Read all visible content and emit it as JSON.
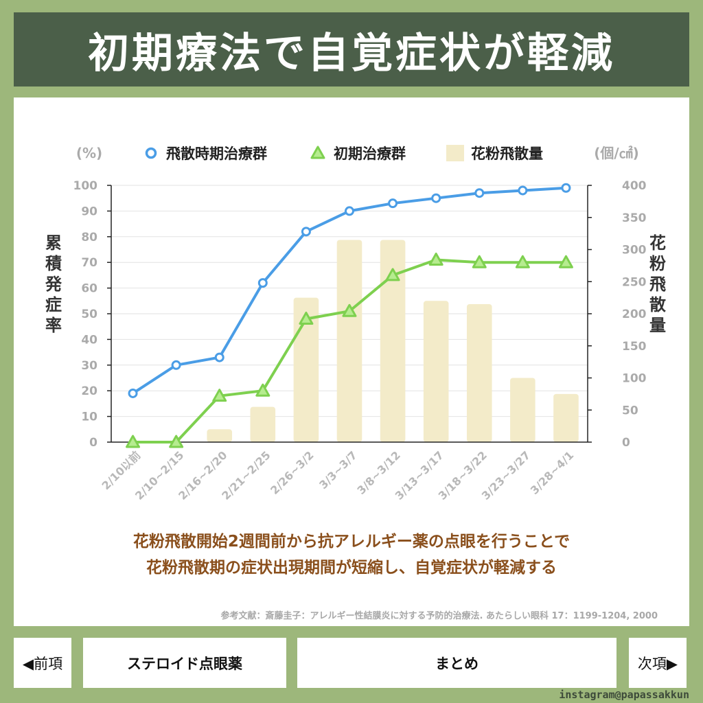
{
  "page": {
    "title": "初期療法で自覚症状が軽減",
    "summary_line1": "花粉飛散開始2週間前から抗アレルギー薬の点眼を行うことで",
    "summary_line2": "花粉飛散期の症状出現期間が短縮し、自覚症状が軽減する",
    "reference": "参考文献：斎藤圭子：アレルギー性結膜炎に対する予防的治療法. あたらしい眼科 17：1199-1204, 2000",
    "instagram": "instagram@papassakkun"
  },
  "nav": {
    "prev_label": "◀前項",
    "steroid_label": "ステロイド点眼薬",
    "summary_label": "まとめ",
    "next_label": "次項▶"
  },
  "colors": {
    "header_bg": "#4b5f49",
    "page_bg": "#9db77b",
    "blue_line": "#4a9de6",
    "green_line": "#7ed04f",
    "bar": "#f3ebc9",
    "summary_text": "#8a4f1c"
  },
  "chart_data": {
    "type": "bar+line",
    "y_left_unit": "(%)",
    "y_right_unit": "(個/㎠)",
    "ylabel_left": "累積発症率",
    "ylabel_right": "花粉飛散量",
    "ylim_left": [
      0,
      100
    ],
    "ylim_right": [
      0,
      400
    ],
    "yticks_left": [
      0,
      10,
      20,
      30,
      40,
      50,
      60,
      70,
      80,
      90,
      100
    ],
    "yticks_right": [
      0,
      50,
      100,
      150,
      200,
      250,
      300,
      350,
      400
    ],
    "legend_position": "top",
    "categories": [
      "2/10以前",
      "2/10~2/15",
      "2/16~2/20",
      "2/21~2/25",
      "2/26~3/2",
      "3/3~3/7",
      "3/8~3/12",
      "3/13~3/17",
      "3/18~3/22",
      "3/23~3/27",
      "3/28~4/1"
    ],
    "series": [
      {
        "name": "飛散時期治療群",
        "type": "line",
        "axis": "left",
        "color": "#4a9de6",
        "marker": "circle",
        "values": [
          19,
          30,
          33,
          62,
          82,
          90,
          93,
          95,
          97,
          98,
          99
        ]
      },
      {
        "name": "初期治療群",
        "type": "line",
        "axis": "left",
        "color": "#7ed04f",
        "marker": "triangle",
        "values": [
          0,
          0,
          18,
          20,
          48,
          51,
          65,
          71,
          70,
          70,
          70
        ]
      },
      {
        "name": "花粉飛散量",
        "type": "bar",
        "axis": "right",
        "color": "#f3ebc9",
        "values": [
          0,
          0,
          20,
          55,
          225,
          315,
          315,
          220,
          215,
          100,
          75
        ]
      }
    ]
  }
}
